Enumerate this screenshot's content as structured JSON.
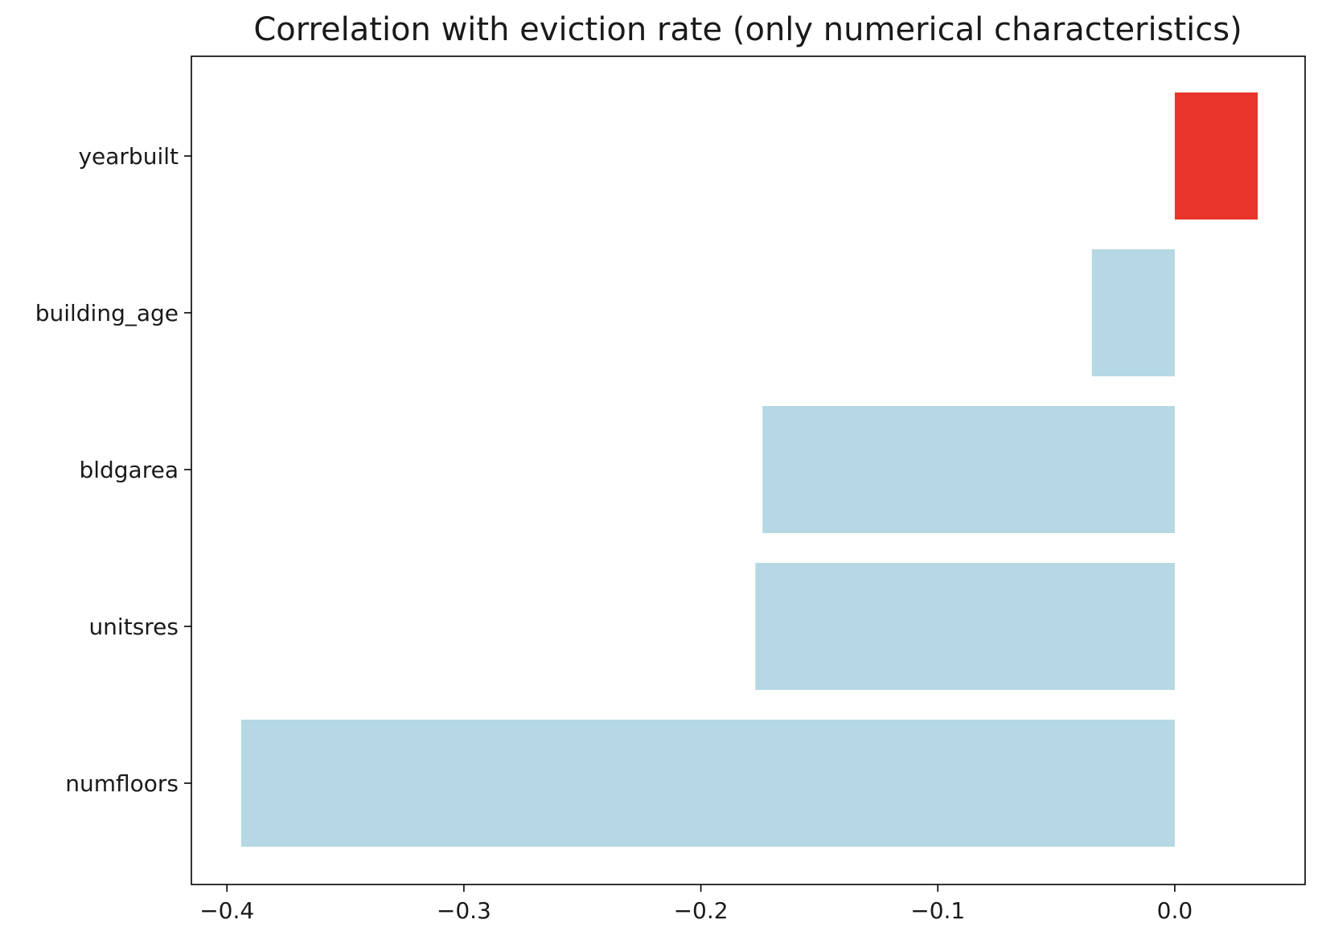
{
  "chart_data": {
    "type": "bar",
    "orientation": "horizontal",
    "title": "Correlation with eviction rate (only numerical characteristics)",
    "xlabel": "",
    "ylabel": "",
    "categories": [
      "yearbuilt",
      "building_age",
      "bldgarea",
      "unitsres",
      "numfloors"
    ],
    "values": [
      0.035,
      -0.035,
      -0.174,
      -0.177,
      -0.394
    ],
    "bar_colors": [
      "#e8342a",
      "#b5d8e4",
      "#b5d8e4",
      "#b5d8e4",
      "#b5d8e4"
    ],
    "xlim": [
      -0.415,
      0.055
    ],
    "xticks": [
      -0.4,
      -0.3,
      -0.2,
      -0.1,
      0.0
    ],
    "xtick_labels": [
      "−0.4",
      "−0.3",
      "−0.2",
      "−0.1",
      "0.0"
    ],
    "grid": false,
    "legend": false
  }
}
